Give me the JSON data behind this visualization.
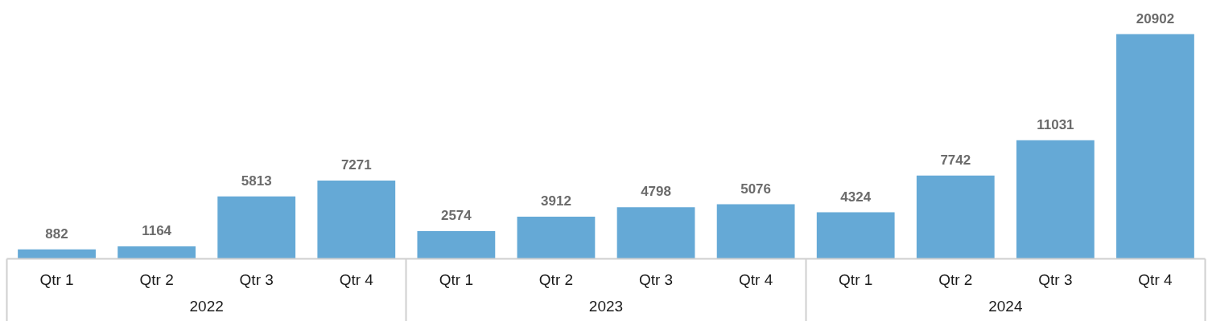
{
  "chart_data": {
    "type": "bar",
    "categories": [
      "Qtr 1",
      "Qtr 2",
      "Qtr 3",
      "Qtr 4",
      "Qtr 1",
      "Qtr 2",
      "Qtr 3",
      "Qtr 4",
      "Qtr 1",
      "Qtr 2",
      "Qtr 3",
      "Qtr 4"
    ],
    "values": [
      882,
      1164,
      5813,
      7271,
      2574,
      3912,
      4798,
      5076,
      4324,
      7742,
      11031,
      20902
    ],
    "color": "#65a9d6",
    "data_labels": true,
    "grid": false,
    "annotations": [
      "2022",
      "2023",
      "2024"
    ]
  }
}
